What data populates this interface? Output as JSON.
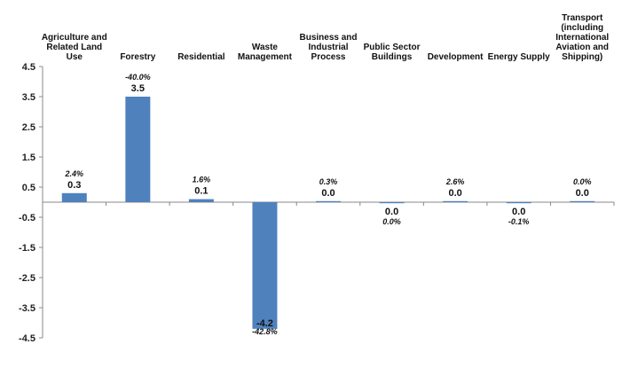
{
  "chart_data": {
    "type": "bar",
    "categories": [
      [
        "Agriculture and",
        "Related Land",
        "Use"
      ],
      [
        "Forestry"
      ],
      [
        "Residential"
      ],
      [
        "Waste",
        "Management"
      ],
      [
        "Business and",
        "Industrial",
        "Process"
      ],
      [
        "Public Sector",
        "Buildings"
      ],
      [
        "Development"
      ],
      [
        "Energy Supply"
      ],
      [
        "Transport",
        "(including",
        "International",
        "Aviation and",
        "Shipping)"
      ]
    ],
    "values": [
      0.3,
      3.5,
      0.1,
      -4.2,
      0.03,
      -0.02,
      0.03,
      -0.02,
      0.0
    ],
    "value_labels": [
      "0.3",
      "3.5",
      "0.1",
      "-4.2",
      "0.0",
      "0.0",
      "0.0",
      "0.0",
      "0.0"
    ],
    "percent_labels": [
      "2.4%",
      "-40.0%",
      "1.6%",
      "-42.8%",
      "0.3%",
      "0.0%",
      "2.6%",
      "-0.1%",
      "0.0%"
    ],
    "yticks": [
      "4.5",
      "3.5",
      "2.5",
      "1.5",
      "0.5",
      "-0.5",
      "-1.5",
      "-2.5",
      "-3.5",
      "-4.5"
    ],
    "ylim": [
      -4.5,
      4.5
    ],
    "bar_color": "#4F81BD",
    "axis_color": "#888888",
    "grid": false
  }
}
